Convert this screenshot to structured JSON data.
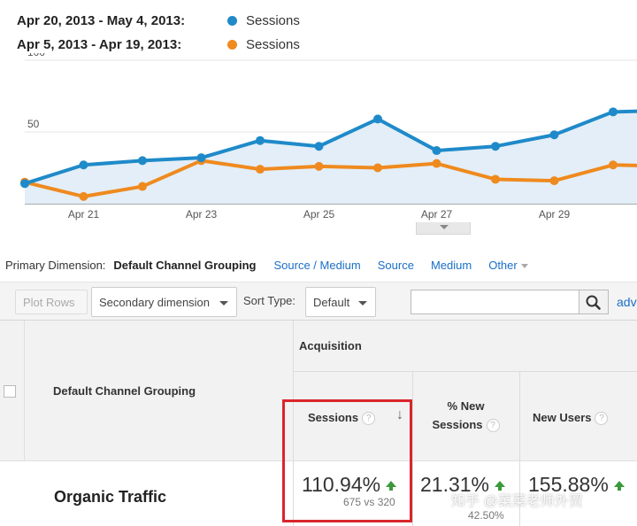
{
  "legend": [
    {
      "range": "Apr 20, 2013 - May 4, 2013:",
      "series": "Sessions",
      "color": "#1f8ac9"
    },
    {
      "range": "Apr 5, 2013 - Apr 19, 2013:",
      "series": "Sessions",
      "color": "#ef8a1f"
    }
  ],
  "chart_data": {
    "type": "line",
    "x": [
      "Apr 20",
      "Apr 21",
      "Apr 22",
      "Apr 23",
      "Apr 24",
      "Apr 25",
      "Apr 26",
      "Apr 27",
      "Apr 28",
      "Apr 29",
      "Apr 30",
      "May 1"
    ],
    "x_tick_labels": [
      "Apr 21",
      "Apr 23",
      "Apr 25",
      "Apr 27",
      "Apr 29"
    ],
    "y_tick_labels": [
      "100",
      "50"
    ],
    "ylim": [
      0,
      100
    ],
    "series": [
      {
        "name": "Sessions",
        "period": "Apr 20, 2013 - May 4, 2013",
        "color": "#1f8ac9",
        "values": [
          14,
          27,
          30,
          32,
          44,
          40,
          59,
          37,
          40,
          48,
          64,
          65
        ],
        "area_fill": "#e3eef8"
      },
      {
        "name": "Sessions",
        "period": "Apr 5, 2013 - Apr 19, 2013",
        "color": "#ef8a1f",
        "values": [
          15,
          5,
          12,
          30,
          24,
          26,
          25,
          28,
          17,
          16,
          27,
          26
        ]
      }
    ],
    "grid": true
  },
  "dimensions": {
    "label": "Primary Dimension:",
    "active": "Default Channel Grouping",
    "links": [
      "Source / Medium",
      "Source",
      "Medium"
    ],
    "other": "Other"
  },
  "toolbar": {
    "plot_rows": "Plot Rows",
    "secondary_dimension": "Secondary dimension",
    "sort_type_label": "Sort Type:",
    "sort_type_value": "Default",
    "search_placeholder": "",
    "advanced": "adv"
  },
  "table": {
    "dimension_header": "Default Channel Grouping",
    "group_header": "Acquisition",
    "columns": [
      {
        "label": "Sessions"
      },
      {
        "label_line1": "% New",
        "label_line2": "Sessions"
      },
      {
        "label": "New Users"
      }
    ],
    "row": {
      "label": "Organic Traffic",
      "sessions_change": "110.94%",
      "sessions_compare": "675 vs 320",
      "new_sessions_change": "21.31%",
      "new_sessions_compare_visible": "42.50%",
      "new_users_change": "155.88%"
    }
  },
  "watermark": "知乎 @菜菜老师外贸"
}
